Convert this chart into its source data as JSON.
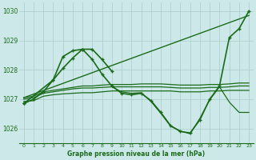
{
  "title": "Graphe pression niveau de la mer (hPa)",
  "background_color": "#cde8e8",
  "grid_color": "#aacccc",
  "line_color": "#1a6b1a",
  "xlim": [
    -0.5,
    23.5
  ],
  "ylim": [
    1025.5,
    1030.3
  ],
  "yticks": [
    1026,
    1027,
    1028,
    1029,
    1030
  ],
  "xticks": [
    0,
    1,
    2,
    3,
    4,
    5,
    6,
    7,
    8,
    9,
    10,
    11,
    12,
    13,
    14,
    15,
    16,
    17,
    18,
    19,
    20,
    21,
    22,
    23
  ],
  "series": [
    {
      "x": [
        0,
        1,
        2,
        3,
        4,
        5,
        6,
        7,
        8,
        9,
        10,
        11,
        12,
        13,
        14,
        15,
        16,
        17,
        18,
        19,
        20,
        21,
        22,
        23
      ],
      "y": [
        1026.85,
        1027.0,
        1027.25,
        1027.65,
        1028.05,
        1028.4,
        1028.7,
        1028.35,
        1027.85,
        1027.45,
        1027.2,
        1027.15,
        1027.2,
        1026.95,
        1026.55,
        1026.1,
        1025.9,
        1025.85,
        1026.3,
        1027.0,
        1027.45,
        1029.1,
        1029.4,
        1030.0
      ],
      "marker": true,
      "linewidth": 1.2
    },
    {
      "x": [
        0,
        23
      ],
      "y": [
        1027.05,
        1029.85
      ],
      "marker": false,
      "linewidth": 1.0
    },
    {
      "x": [
        0,
        3,
        4,
        5,
        6,
        7,
        8,
        9
      ],
      "y": [
        1026.85,
        1027.65,
        1028.45,
        1028.65,
        1028.7,
        1028.7,
        1028.35,
        1027.95
      ],
      "marker": true,
      "linewidth": 1.2
    },
    {
      "x": [
        0,
        1,
        2,
        3,
        4,
        5,
        6,
        7,
        8,
        9,
        10,
        11,
        12,
        13,
        14,
        15,
        16,
        17,
        18,
        19,
        20,
        21,
        22,
        23
      ],
      "y": [
        1027.05,
        1027.1,
        1027.25,
        1027.3,
        1027.35,
        1027.4,
        1027.45,
        1027.45,
        1027.48,
        1027.5,
        1027.5,
        1027.5,
        1027.52,
        1027.52,
        1027.52,
        1027.5,
        1027.48,
        1027.48,
        1027.48,
        1027.5,
        1027.5,
        1027.52,
        1027.55,
        1027.55
      ],
      "marker": false,
      "linewidth": 0.9
    },
    {
      "x": [
        0,
        1,
        2,
        3,
        4,
        5,
        6,
        7,
        8,
        9,
        10,
        11,
        12,
        13,
        14,
        15,
        16,
        17,
        18,
        19,
        20,
        21,
        22,
        23
      ],
      "y": [
        1027.0,
        1027.05,
        1027.2,
        1027.25,
        1027.3,
        1027.35,
        1027.38,
        1027.38,
        1027.4,
        1027.42,
        1027.42,
        1027.42,
        1027.42,
        1027.42,
        1027.42,
        1027.4,
        1027.38,
        1027.38,
        1027.38,
        1027.4,
        1027.4,
        1027.42,
        1027.45,
        1027.45
      ],
      "marker": false,
      "linewidth": 0.9
    },
    {
      "x": [
        0,
        1,
        2,
        3,
        4,
        5,
        6,
        7,
        8,
        9,
        10,
        11,
        12,
        13,
        14,
        15,
        16,
        17,
        18,
        19,
        20,
        21,
        22,
        23
      ],
      "y": [
        1026.92,
        1026.95,
        1027.1,
        1027.15,
        1027.18,
        1027.2,
        1027.22,
        1027.22,
        1027.25,
        1027.28,
        1027.28,
        1027.28,
        1027.28,
        1027.28,
        1027.28,
        1027.28,
        1027.25,
        1027.25,
        1027.25,
        1027.28,
        1027.28,
        1027.3,
        1027.3,
        1027.3
      ],
      "marker": false,
      "linewidth": 0.9
    },
    {
      "x": [
        9,
        10,
        11,
        12,
        13,
        14,
        15,
        16,
        17,
        18,
        19,
        20,
        21,
        22,
        23
      ],
      "y": [
        1027.42,
        1027.25,
        1027.2,
        1027.22,
        1026.92,
        1026.52,
        1026.08,
        1025.92,
        1025.82,
        1026.35,
        1026.98,
        1027.42,
        1026.9,
        1026.55,
        1026.55
      ],
      "marker": false,
      "linewidth": 0.9
    }
  ]
}
